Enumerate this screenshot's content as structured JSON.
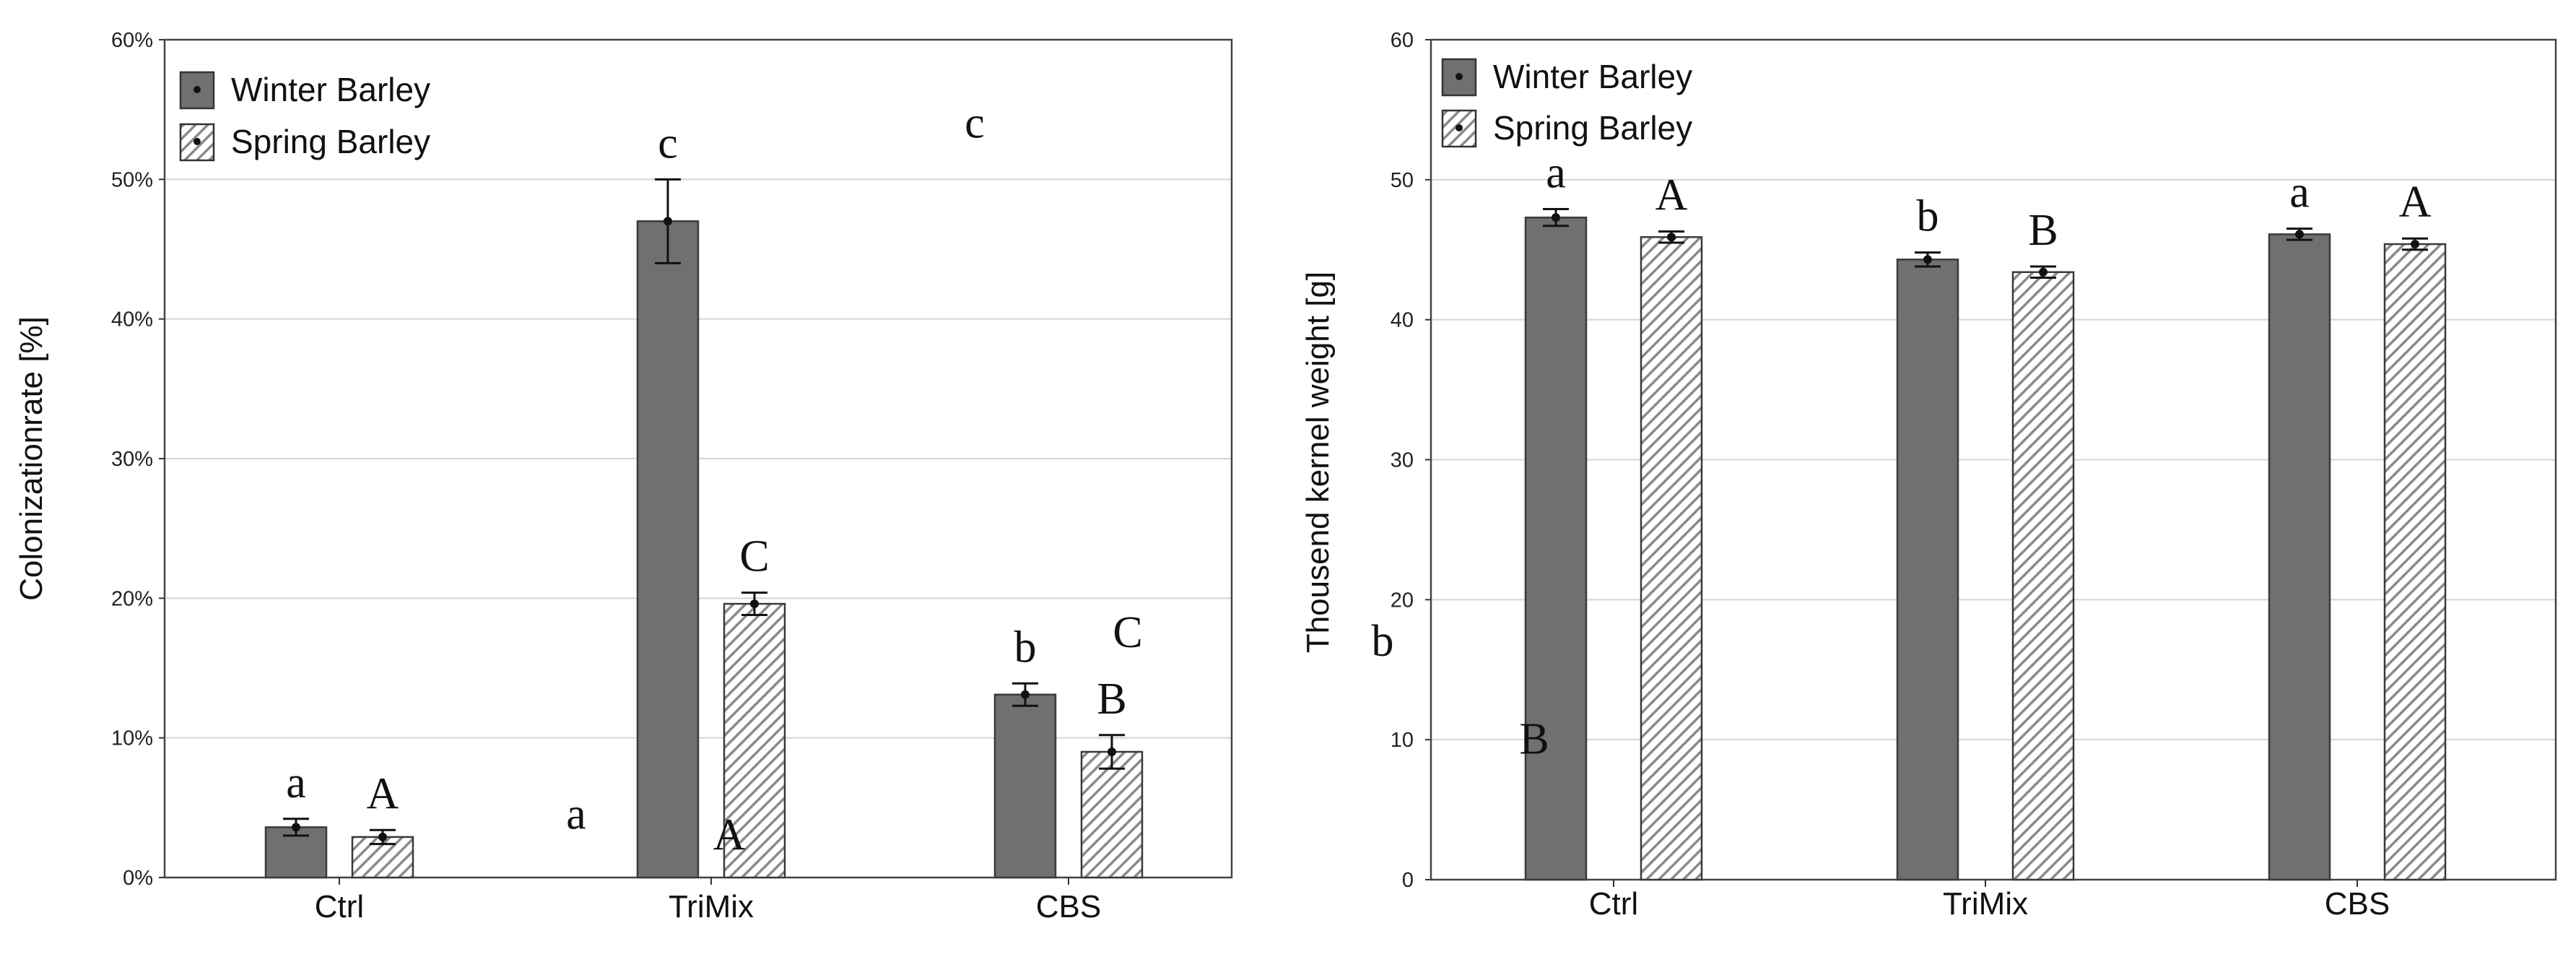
{
  "chart_data": [
    {
      "type": "bar",
      "title": "",
      "xlabel": "",
      "ylabel": "Colonizationrate [%]",
      "ylim": [
        0,
        60
      ],
      "yticks": [
        0,
        10,
        20,
        30,
        40,
        50,
        60
      ],
      "ytick_labels": [
        "0%",
        "10%",
        "20%",
        "30%",
        "40%",
        "50%",
        "60%"
      ],
      "categories": [
        "Ctrl",
        "TriMix",
        "CBS"
      ],
      "grid": true,
      "legend_position": "top-left",
      "series": [
        {
          "name": "Winter Barley",
          "values": [
            3.6,
            47.0,
            13.1
          ],
          "errors": [
            0.6,
            3.0,
            0.8
          ],
          "letters": [
            "a",
            "c",
            "b"
          ],
          "fill": "#707070"
        },
        {
          "name": "Spring Barley",
          "values": [
            2.9,
            19.6,
            9.0
          ],
          "errors": [
            0.5,
            0.8,
            1.2
          ],
          "letters": [
            "A",
            "C",
            "B"
          ],
          "fill": "hatch"
        }
      ],
      "annotations": [
        {
          "text": "a",
          "x": "TriMix",
          "y": 3.5
        },
        {
          "text": "A",
          "x": "TriMix",
          "y": 2.0
        },
        {
          "text": "c",
          "x": "CBS",
          "y": 53.0
        },
        {
          "text": "C",
          "x": "CBS",
          "y": 16.5
        }
      ]
    },
    {
      "type": "bar",
      "title": "",
      "xlabel": "",
      "ylabel": "Thousend kernel weight [g]",
      "ylim": [
        0,
        60
      ],
      "yticks": [
        0,
        10,
        20,
        30,
        40,
        50,
        60
      ],
      "ytick_labels": [
        "0",
        "10",
        "20",
        "30",
        "40",
        "50",
        "60"
      ],
      "categories": [
        "Ctrl",
        "TriMix",
        "CBS"
      ],
      "grid": true,
      "legend_position": "top-left",
      "series": [
        {
          "name": "Winter Barley",
          "values": [
            47.3,
            44.3,
            46.1
          ],
          "errors": [
            0.6,
            0.5,
            0.4
          ],
          "letters": [
            "a",
            "b",
            "a"
          ],
          "fill": "#707070"
        },
        {
          "name": "Spring Barley",
          "values": [
            45.9,
            43.4,
            45.4
          ],
          "errors": [
            0.4,
            0.4,
            0.4
          ],
          "letters": [
            "A",
            "B",
            "A"
          ],
          "fill": "hatch"
        }
      ],
      "annotations": [
        {
          "text": "b",
          "x": "Ctrl",
          "y": 16.0
        },
        {
          "text": "B",
          "x": "Ctrl",
          "y": 9.0
        }
      ]
    }
  ]
}
